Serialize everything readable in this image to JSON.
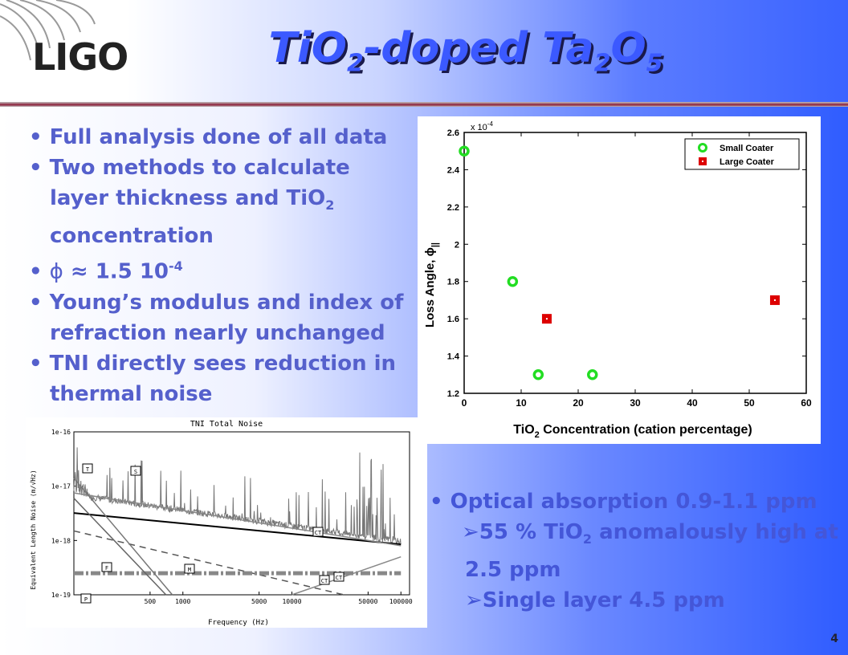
{
  "slide": {
    "logo": "LIGO",
    "title_parts": [
      "TiO",
      "2",
      "-doped Ta",
      "2",
      "O",
      "5"
    ],
    "page_number": "4"
  },
  "bullets": {
    "b1": "• Full analysis done of all data",
    "b2a": "• Two methods to calculate",
    "b2b": "layer thickness and TiO",
    "b2b_sub": "2",
    "b2c": "concentration",
    "b3_prefix": "• ",
    "b3_phi": "ϕ",
    "b3_mid": " ≈ 1.5 10",
    "b3_sup": "-4",
    "b4a": "• Young’s modulus and index of",
    "b4b": "refraction nearly unchanged",
    "b5a": "• TNI directly sees reduction in",
    "b5b": "thermal noise"
  },
  "bullets2": {
    "o1": "• Optical absorption 0.9-1.1 ppm",
    "o2_arrow": "➢",
    "o2a": "55 % TiO",
    "o2_sub": "2",
    "o2b": " anomalously high at",
    "o2c": "2.5 ppm",
    "o3_arrow": "➢",
    "o3": "Single layer 4.5 ppm"
  },
  "chart_data": [
    {
      "type": "scatter",
      "xlabel_parts": [
        "TiO",
        "2",
        " Concentration (cation percentage)"
      ],
      "ylabel": "Loss Angle, ϕ",
      "ylabel_sub": "||",
      "y_multiplier": "x 10",
      "y_multiplier_exp": "-4",
      "xlim": [
        0,
        60
      ],
      "ylim": [
        1.2,
        2.6
      ],
      "xticks": [
        "0",
        "10",
        "20",
        "30",
        "40",
        "50",
        "60"
      ],
      "yticks": [
        "1.2",
        "1.4",
        "1.6",
        "1.8",
        "2",
        "2.2",
        "2.4",
        "2.6"
      ],
      "legend_position": "top-right",
      "series": [
        {
          "name": "Small Coater",
          "color": "#22dd22",
          "marker": "circle",
          "points": [
            [
              0,
              2.5
            ],
            [
              8.5,
              1.8
            ],
            [
              13,
              1.3
            ],
            [
              22.5,
              1.3
            ]
          ]
        },
        {
          "name": "Large Coater",
          "color": "#dd0000",
          "marker": "square",
          "points": [
            [
              14.5,
              1.6
            ],
            [
              54.5,
              1.7
            ]
          ]
        }
      ]
    },
    {
      "type": "line",
      "title": "TNI Total Noise",
      "xlabel": "Frequency (Hz)",
      "ylabel": "Equivalent Length Noise (m/√Hz)",
      "xscale": "log",
      "yscale": "log",
      "xlim": [
        100,
        120000
      ],
      "ylim": [
        1e-19,
        1e-16
      ],
      "xticks": [
        "500",
        "1000",
        "5000",
        "10000",
        "50000",
        "100000"
      ],
      "yticks": [
        "1e-16",
        "1e-17",
        "1e-18",
        "1e-19"
      ],
      "markers": [
        "T",
        "F",
        "M",
        "S",
        "P",
        "CT",
        "CT",
        "CT"
      ],
      "series": [
        {
          "name": "",
          "color": "#000000",
          "style": "solid",
          "points": [
            [
              100,
              3.2e-18
            ],
            [
              100000,
              8.5e-19
            ]
          ]
        },
        {
          "name": "",
          "color": "#888888",
          "style": "solid",
          "points": [
            [
              100,
              7.5e-18
            ],
            [
              100000,
              8e-19
            ]
          ]
        },
        {
          "name": "",
          "color": "#555555",
          "style": "dashed",
          "points": [
            [
              100,
              1.5e-18
            ],
            [
              30000,
              1e-19
            ]
          ]
        },
        {
          "name": "",
          "color": "#888888",
          "style": "dashdot",
          "points": [
            [
              100,
              2.5e-19
            ],
            [
              100000,
              2.5e-19
            ]
          ]
        },
        {
          "name": "",
          "color": "#666666",
          "style": "solid",
          "points": [
            [
              100,
              6e-18
            ],
            [
              700,
              1e-19
            ]
          ]
        },
        {
          "name": "",
          "color": "#777777",
          "style": "solid",
          "points": [
            [
              100,
              1.4e-17
            ],
            [
              800,
              1e-19
            ]
          ]
        },
        {
          "name": "",
          "color": "#888888",
          "style": "solid",
          "points": [
            [
              10000,
              1e-19
            ],
            [
              100000,
              5e-19
            ]
          ]
        }
      ]
    }
  ]
}
